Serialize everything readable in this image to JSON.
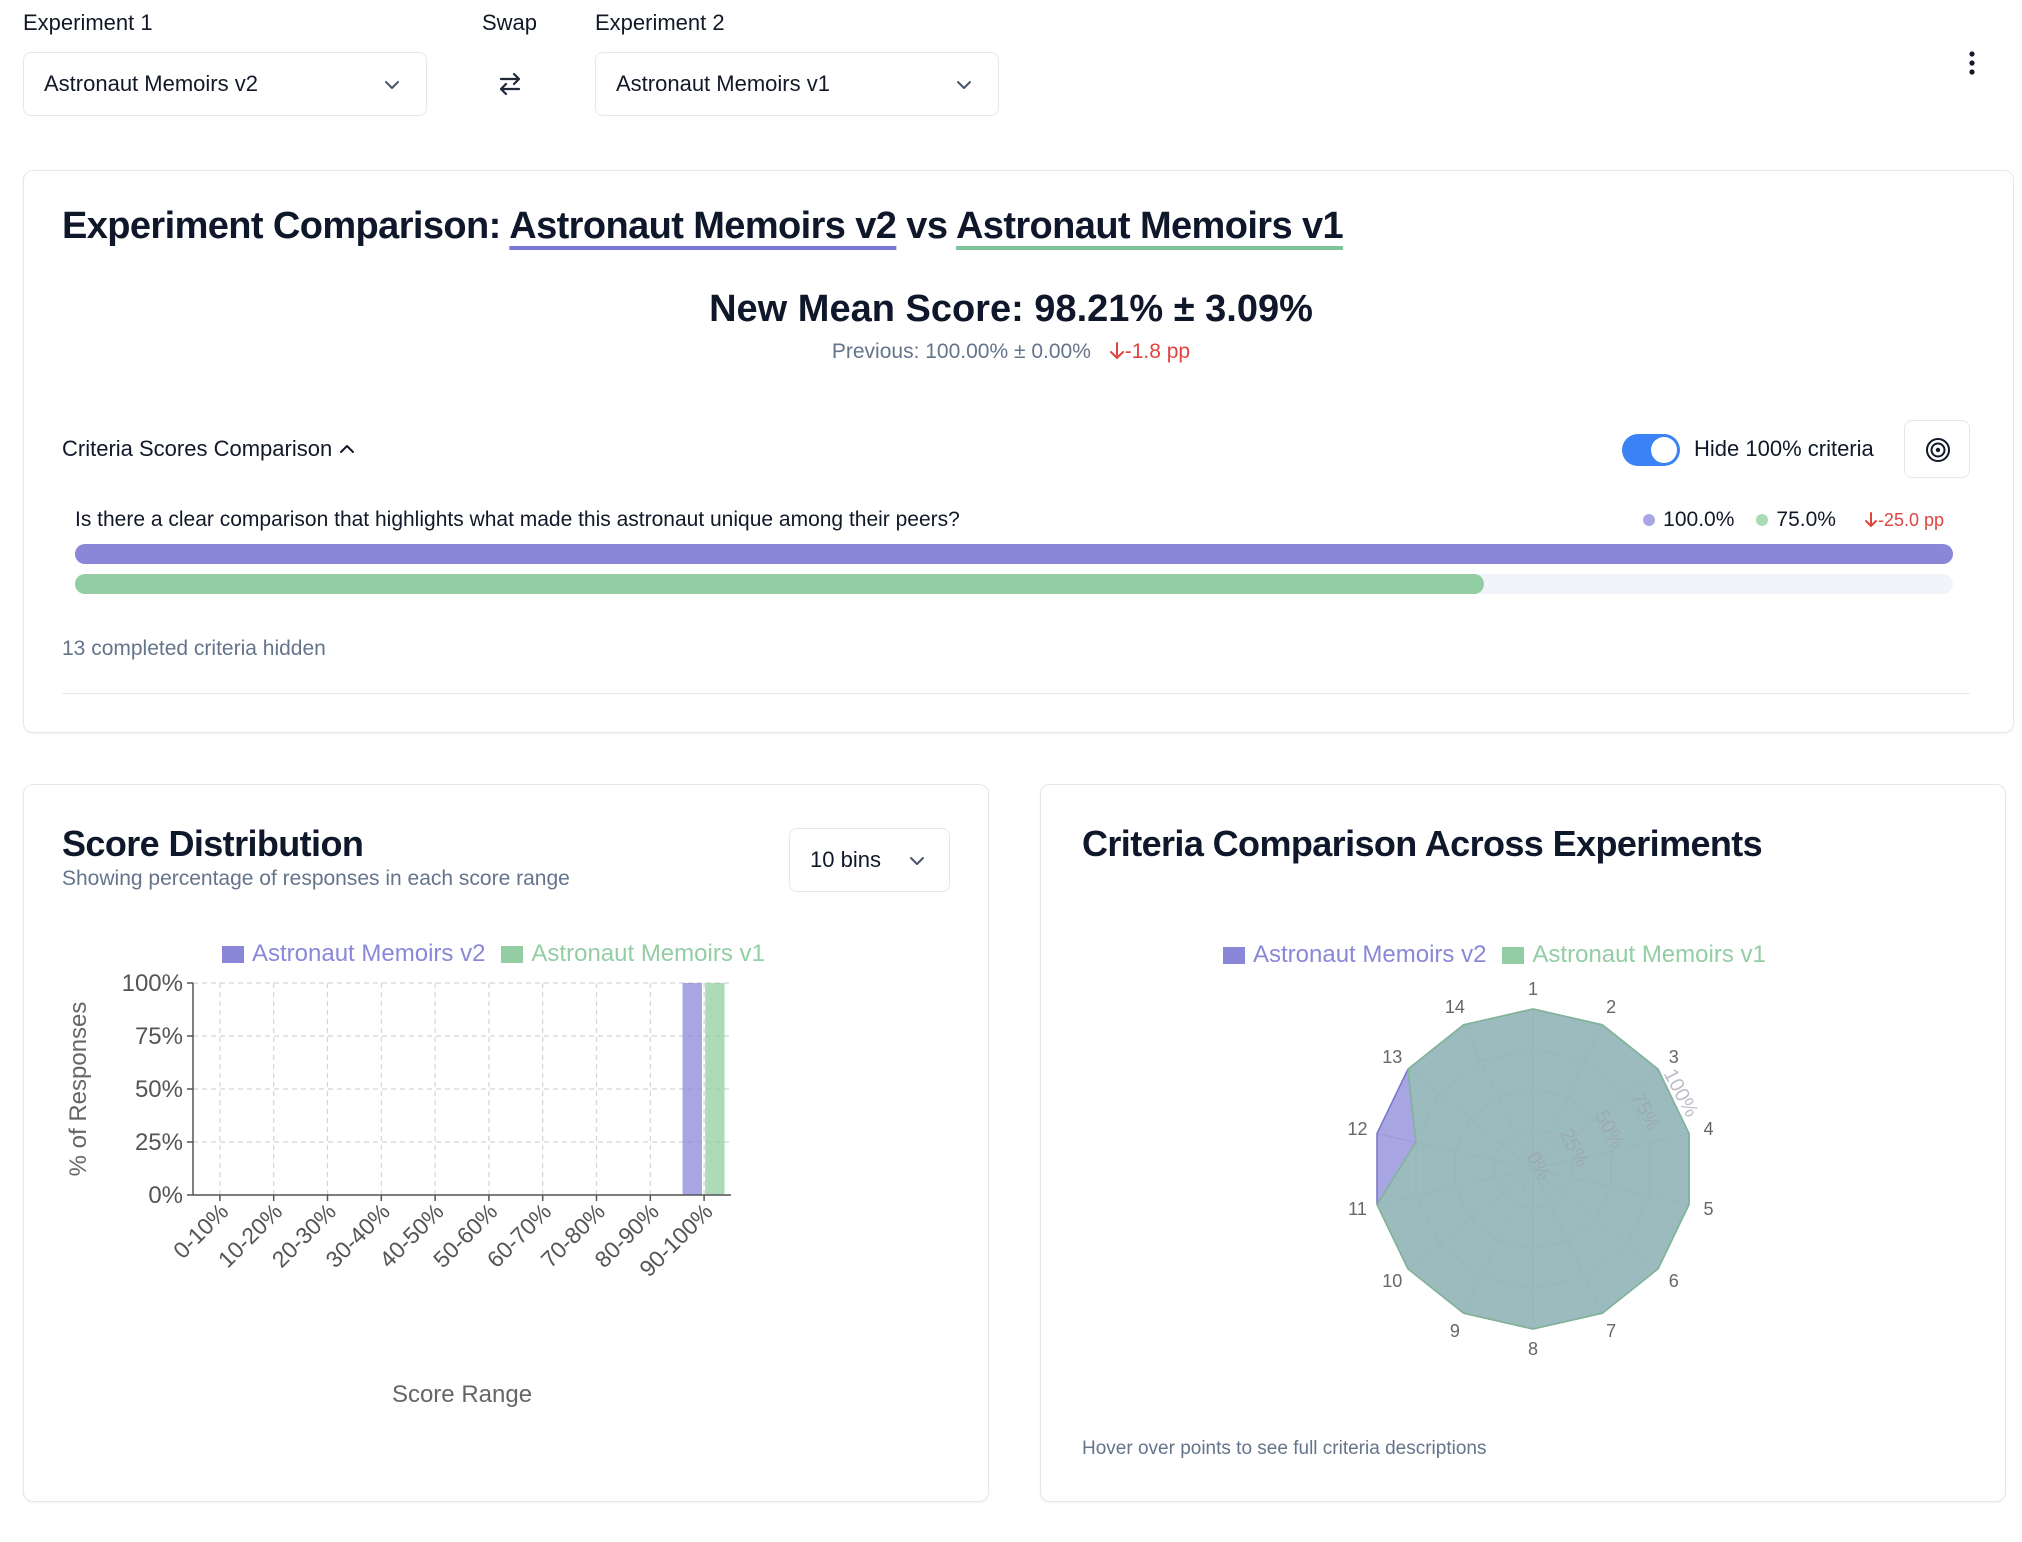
{
  "selectors": {
    "exp1_label": "Experiment 1",
    "exp1_value": "Astronaut Memoirs v2",
    "swap_label": "Swap",
    "exp2_label": "Experiment 2",
    "exp2_value": "Astronaut Memoirs v1"
  },
  "comparison": {
    "title_prefix": "Experiment Comparison:",
    "title_exp1": "Astronaut Memoirs v2",
    "title_vs": "vs",
    "title_exp2": "Astronaut Memoirs v1",
    "mean_score": "New Mean Score: 98.21% ± 3.09%",
    "previous": "Previous: 100.00% ± 0.00%",
    "previous_delta": "-1.8 pp",
    "section_title": "Criteria Scores Comparison",
    "hide_toggle_label": "Hide 100% criteria",
    "hide_toggle_on": true,
    "criteria": [
      {
        "question": "Is there a clear comparison that highlights what made this astronaut unique among their peers?",
        "value_1": "100.0%",
        "value_2": "75.0%",
        "delta": "-25.0 pp",
        "fraction_1": 1.0,
        "fraction_2": 0.75
      }
    ],
    "hidden_note": "13 completed criteria hidden"
  },
  "colors": {
    "exp1": "#8a87d8",
    "exp2": "#93cda3",
    "negative": "#e0443e",
    "accent": "#3b82f6"
  },
  "score_distribution": {
    "title": "Score Distribution",
    "subtitle": "Showing percentage of responses in each score range",
    "bins_label": "10 bins"
  },
  "radar": {
    "title": "Criteria Comparison Across Experiments",
    "footnote": "Hover over points to see full criteria descriptions"
  },
  "chart_data": [
    {
      "type": "bar",
      "categories": [
        "0-10%",
        "10-20%",
        "20-30%",
        "30-40%",
        "40-50%",
        "50-60%",
        "60-70%",
        "70-80%",
        "80-90%",
        "90-100%"
      ],
      "series": [
        {
          "name": "Astronaut Memoirs v2",
          "values": [
            0,
            0,
            0,
            0,
            0,
            0,
            0,
            0,
            0,
            100
          ]
        },
        {
          "name": "Astronaut Memoirs v1",
          "values": [
            0,
            0,
            0,
            0,
            0,
            0,
            0,
            0,
            0,
            100
          ]
        }
      ],
      "xlabel": "Score Range",
      "ylabel": "% of Responses",
      "ylim": [
        0,
        100
      ],
      "yticks": [
        "0%",
        "25%",
        "50%",
        "75%",
        "100%"
      ],
      "grid": true,
      "legend": "top"
    },
    {
      "type": "radar",
      "categories": [
        "1",
        "2",
        "3",
        "4",
        "5",
        "6",
        "7",
        "8",
        "9",
        "10",
        "11",
        "12",
        "13",
        "14"
      ],
      "series": [
        {
          "name": "Astronaut Memoirs v2",
          "values": [
            100,
            100,
            100,
            100,
            100,
            100,
            100,
            100,
            100,
            100,
            100,
            100,
            100,
            100
          ]
        },
        {
          "name": "Astronaut Memoirs v1",
          "values": [
            100,
            100,
            100,
            100,
            100,
            100,
            100,
            100,
            100,
            100,
            100,
            75,
            100,
            100
          ]
        }
      ],
      "rticks": [
        "0%",
        "25%",
        "50%",
        "75%",
        "100%"
      ],
      "rlim": [
        0,
        100
      ],
      "legend": "top"
    }
  ]
}
